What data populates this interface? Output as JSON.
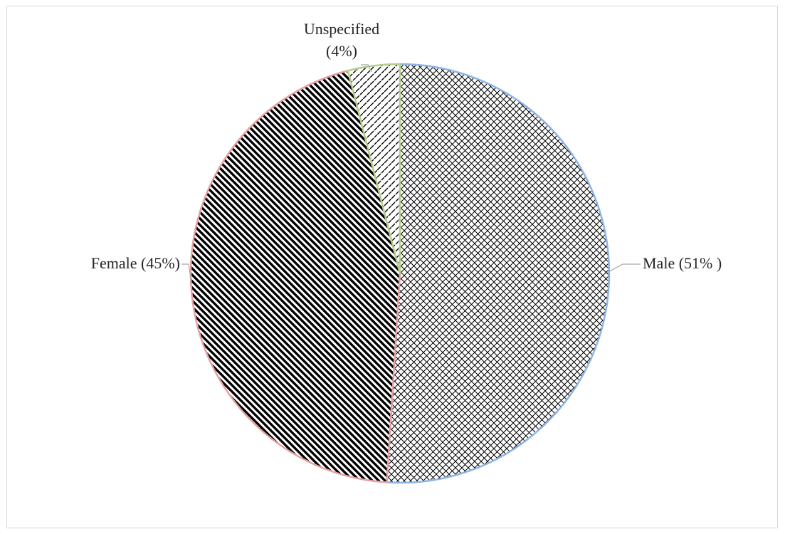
{
  "chart_data": {
    "type": "pie",
    "slices": [
      {
        "category": "Male",
        "value": 51,
        "label_lines": [
          "Male (51% )"
        ],
        "color": "#8eb4e3",
        "pattern": "diagonal-crosshatch"
      },
      {
        "category": "Female",
        "value": 45,
        "label_lines": [
          "Female (45%)"
        ],
        "color": "#e6a0a0",
        "pattern": "wide-downward-diagonal"
      },
      {
        "category": "Unspecified",
        "value": 4,
        "label_lines": [
          "Unspecified",
          "(4%)"
        ],
        "color": "#b5cf8a",
        "pattern": "dashed-upward-diagonal"
      }
    ],
    "start_angle_degrees": 0,
    "direction": "clockwise",
    "legend": "none"
  }
}
